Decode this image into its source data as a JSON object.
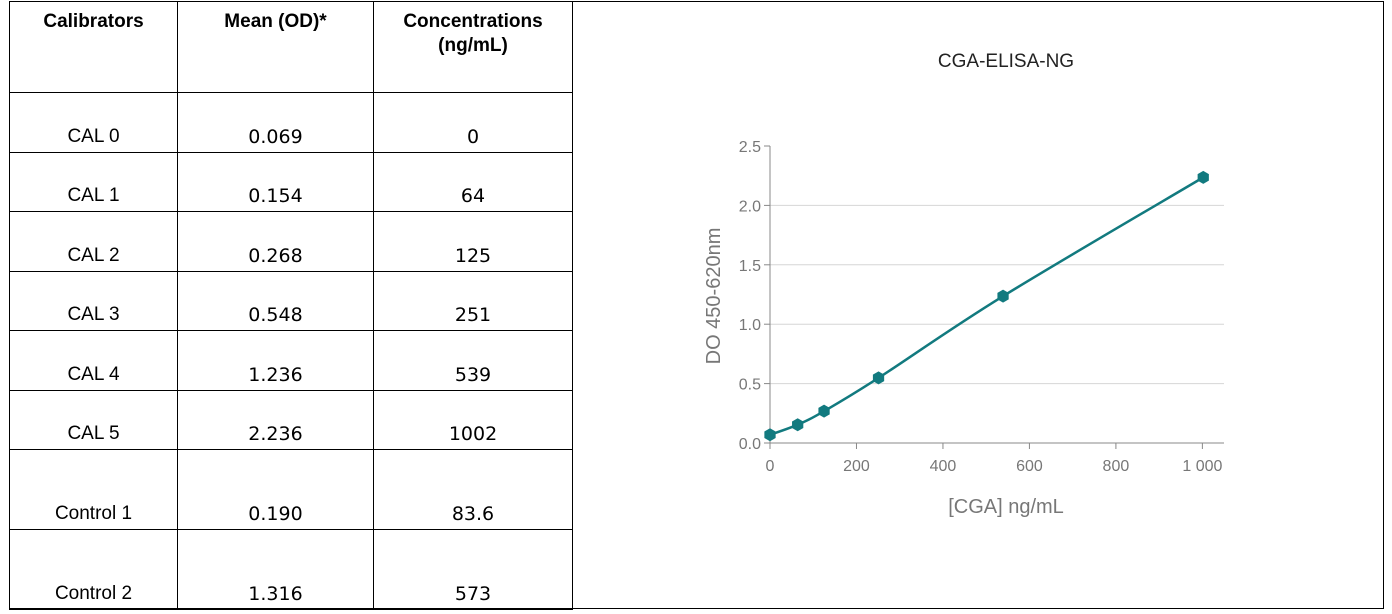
{
  "table": {
    "headers": [
      "Calibrators",
      "Mean (OD)*",
      "Concentrations",
      "(ng/mL)"
    ],
    "rows": [
      {
        "name": "CAL 0",
        "od": "0.069",
        "conc": "0"
      },
      {
        "name": "CAL 1",
        "od": "0.154",
        "conc": "64"
      },
      {
        "name": "CAL 2",
        "od": "0.268",
        "conc": "125"
      },
      {
        "name": "CAL 3",
        "od": "0.548",
        "conc": "251"
      },
      {
        "name": "CAL 4",
        "od": "1.236",
        "conc": "539"
      },
      {
        "name": "CAL 5",
        "od": "2.236",
        "conc": "1002"
      },
      {
        "name": "Control 1",
        "od": "0.190",
        "conc": "83.6"
      },
      {
        "name": "Control 2",
        "od": "1.316",
        "conc": "573"
      }
    ]
  },
  "chart_data": {
    "type": "scatter",
    "title": "CGA-ELISA-NG",
    "xlabel": "[CGA] ng/mL",
    "ylabel": "DO 450-620nm",
    "xlim": [
      0,
      1050
    ],
    "ylim": [
      0,
      2.5
    ],
    "xticks": [
      0,
      200,
      400,
      600,
      800,
      1000
    ],
    "xtick_labels": [
      "0",
      "200",
      "400",
      "600",
      "800",
      "1 000"
    ],
    "yticks": [
      0,
      0.5,
      1.0,
      1.5,
      2.0,
      2.5
    ],
    "ytick_labels": [
      "0.0",
      "0.5",
      "1.0",
      "1.5",
      "2.0",
      "2.5"
    ],
    "grid": "horizontal",
    "color": "#127a7f",
    "series": [
      {
        "points": [
          {
            "x": 0,
            "y": 0.069
          },
          {
            "x": 64,
            "y": 0.154
          },
          {
            "x": 125,
            "y": 0.268
          },
          {
            "x": 251,
            "y": 0.548
          },
          {
            "x": 539,
            "y": 1.236
          },
          {
            "x": 1002,
            "y": 2.236
          }
        ]
      }
    ]
  }
}
